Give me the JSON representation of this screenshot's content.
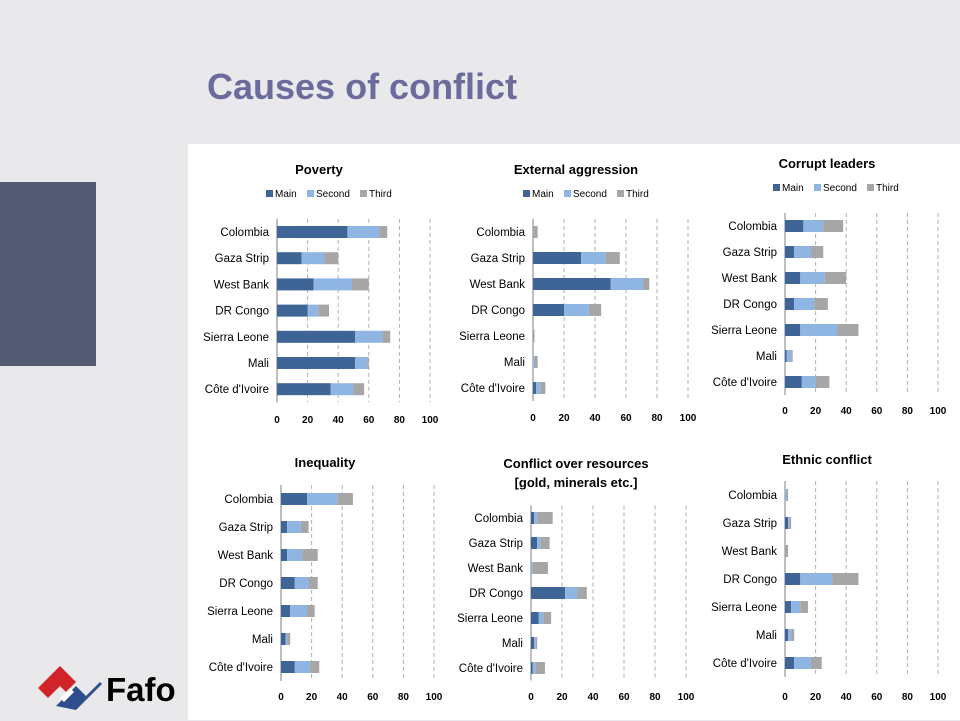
{
  "slide": {
    "title": "Causes of conflict",
    "logo_text": "Fafo"
  },
  "colors": {
    "Main": "#3f6496",
    "Second": "#8fb5e3",
    "Third": "#a6a6a6",
    "grid": "#b0b0b0",
    "title": "#6b6b9e"
  },
  "chart_data": [
    {
      "type": "bar",
      "orientation": "horizontal",
      "stacked": true,
      "title": "Poverty",
      "categories": [
        "Colombia",
        "Gaza Strip",
        "West Bank",
        "DR Congo",
        "Sierra Leone",
        "Mali",
        "Côte d'Ivoire"
      ],
      "series": [
        {
          "name": "Main",
          "values": [
            46,
            16,
            24,
            20,
            51,
            51,
            35
          ]
        },
        {
          "name": "Second",
          "values": [
            21,
            15,
            25,
            7,
            18,
            8,
            15
          ]
        },
        {
          "name": "Third",
          "values": [
            5,
            9,
            11,
            7,
            5,
            1,
            7
          ]
        }
      ],
      "xlim": [
        0,
        100
      ],
      "xticks": [
        0,
        20,
        40,
        60,
        80,
        100
      ],
      "legend": "top"
    },
    {
      "type": "bar",
      "orientation": "horizontal",
      "stacked": true,
      "title": "External aggression",
      "categories": [
        "Colombia",
        "Gaza Strip",
        "West Bank",
        "DR Congo",
        "Sierra Leone",
        "Mali",
        "Côte d'Ivoire"
      ],
      "series": [
        {
          "name": "Main",
          "values": [
            0,
            31,
            50,
            20,
            0,
            0,
            2
          ]
        },
        {
          "name": "Second",
          "values": [
            0,
            16,
            21,
            16,
            0,
            1,
            3
          ]
        },
        {
          "name": "Third",
          "values": [
            3,
            9,
            4,
            8,
            1,
            2,
            3
          ]
        }
      ],
      "xlim": [
        0,
        100
      ],
      "xticks": [
        0,
        20,
        40,
        60,
        80,
        100
      ],
      "legend": "top"
    },
    {
      "type": "bar",
      "orientation": "horizontal",
      "stacked": true,
      "title": "Corrupt leaders",
      "categories": [
        "Colombia",
        "Gaza Strip",
        "West Bank",
        "DR Congo",
        "Sierra Leone",
        "Mali",
        "Côte d'Ivoire"
      ],
      "series": [
        {
          "name": "Main",
          "values": [
            12,
            6,
            10,
            6,
            10,
            1,
            11
          ]
        },
        {
          "name": "Second",
          "values": [
            13,
            11,
            16,
            13,
            24,
            3,
            9
          ]
        },
        {
          "name": "Third",
          "values": [
            13,
            8,
            14,
            9,
            14,
            1,
            9
          ]
        }
      ],
      "xlim": [
        0,
        100
      ],
      "xticks": [
        0,
        20,
        40,
        60,
        80,
        100
      ],
      "legend": "top"
    },
    {
      "type": "bar",
      "orientation": "horizontal",
      "stacked": true,
      "title": "Inequality",
      "categories": [
        "Colombia",
        "Gaza Strip",
        "West Bank",
        "DR Congo",
        "Sierra Leone",
        "Mali",
        "Côte d'Ivoire"
      ],
      "series": [
        {
          "name": "Main",
          "values": [
            17,
            4,
            4,
            9,
            6,
            3,
            9
          ]
        },
        {
          "name": "Second",
          "values": [
            20,
            9,
            10,
            9,
            11,
            1,
            10
          ]
        },
        {
          "name": "Third",
          "values": [
            10,
            5,
            10,
            6,
            5,
            2,
            6
          ]
        }
      ],
      "xlim": [
        0,
        100
      ],
      "xticks": [
        0,
        20,
        40,
        60,
        80,
        100
      ]
    },
    {
      "type": "bar",
      "orientation": "horizontal",
      "stacked": true,
      "title": "Conflict over resources\n[gold, minerals etc.]",
      "categories": [
        "Colombia",
        "Gaza Strip",
        "West Bank",
        "DR Congo",
        "Sierra Leone",
        "Mali",
        "Côte d'Ivoire"
      ],
      "series": [
        {
          "name": "Main",
          "values": [
            2,
            4,
            0,
            22,
            5,
            2,
            1
          ]
        },
        {
          "name": "Second",
          "values": [
            2,
            2,
            1,
            8,
            3,
            1,
            2
          ]
        },
        {
          "name": "Third",
          "values": [
            10,
            6,
            10,
            6,
            5,
            1,
            6
          ]
        }
      ],
      "xlim": [
        0,
        100
      ],
      "xticks": [
        0,
        20,
        40,
        60,
        80,
        100
      ]
    },
    {
      "type": "bar",
      "orientation": "horizontal",
      "stacked": true,
      "title": "Ethnic conflict",
      "categories": [
        "Colombia",
        "Gaza Strip",
        "West Bank",
        "DR Congo",
        "Sierra Leone",
        "Mali",
        "Côte d'Ivoire"
      ],
      "series": [
        {
          "name": "Main",
          "values": [
            0,
            2,
            0,
            10,
            4,
            2,
            6
          ]
        },
        {
          "name": "Second",
          "values": [
            1,
            1,
            0,
            21,
            6,
            2,
            11
          ]
        },
        {
          "name": "Third",
          "values": [
            1,
            1,
            2,
            17,
            5,
            2,
            7
          ]
        }
      ],
      "xlim": [
        0,
        100
      ],
      "xticks": [
        0,
        20,
        40,
        60,
        80,
        100
      ]
    }
  ]
}
